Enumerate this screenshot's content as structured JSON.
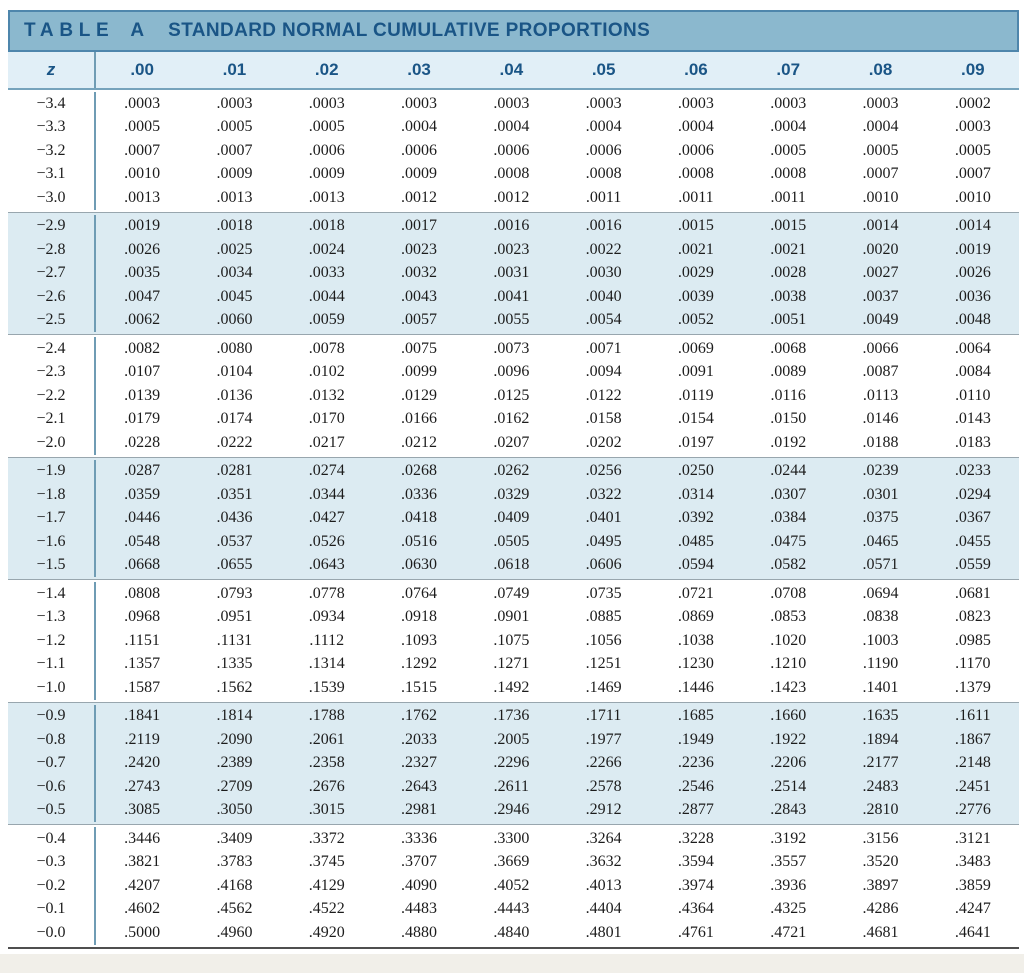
{
  "header": {
    "table_label": "TABLE",
    "table_letter": "A",
    "title": "STANDARD NORMAL CUMULATIVE PROPORTIONS"
  },
  "colors": {
    "band_bg": "#8bb8ce",
    "band_border": "#4e86ac",
    "heading_text": "#1a5586",
    "header_row_bg": "#e1eff7",
    "shaded_block_bg": "#dcebf2",
    "divider": "#6f9cb4",
    "block_separator": "#98a6ae",
    "data_text": "#1c1c1c",
    "footer_strip": "#f1efe9"
  },
  "table": {
    "columns": [
      "z",
      ".00",
      ".01",
      ".02",
      ".03",
      ".04",
      ".05",
      ".06",
      ".07",
      ".08",
      ".09"
    ],
    "blocks": [
      {
        "shaded": false,
        "rows": [
          {
            "z": "−3.4",
            "values": [
              ".0003",
              ".0003",
              ".0003",
              ".0003",
              ".0003",
              ".0003",
              ".0003",
              ".0003",
              ".0003",
              ".0002"
            ]
          },
          {
            "z": "−3.3",
            "values": [
              ".0005",
              ".0005",
              ".0005",
              ".0004",
              ".0004",
              ".0004",
              ".0004",
              ".0004",
              ".0004",
              ".0003"
            ]
          },
          {
            "z": "−3.2",
            "values": [
              ".0007",
              ".0007",
              ".0006",
              ".0006",
              ".0006",
              ".0006",
              ".0006",
              ".0005",
              ".0005",
              ".0005"
            ]
          },
          {
            "z": "−3.1",
            "values": [
              ".0010",
              ".0009",
              ".0009",
              ".0009",
              ".0008",
              ".0008",
              ".0008",
              ".0008",
              ".0007",
              ".0007"
            ]
          },
          {
            "z": "−3.0",
            "values": [
              ".0013",
              ".0013",
              ".0013",
              ".0012",
              ".0012",
              ".0011",
              ".0011",
              ".0011",
              ".0010",
              ".0010"
            ]
          }
        ]
      },
      {
        "shaded": true,
        "rows": [
          {
            "z": "−2.9",
            "values": [
              ".0019",
              ".0018",
              ".0018",
              ".0017",
              ".0016",
              ".0016",
              ".0015",
              ".0015",
              ".0014",
              ".0014"
            ]
          },
          {
            "z": "−2.8",
            "values": [
              ".0026",
              ".0025",
              ".0024",
              ".0023",
              ".0023",
              ".0022",
              ".0021",
              ".0021",
              ".0020",
              ".0019"
            ]
          },
          {
            "z": "−2.7",
            "values": [
              ".0035",
              ".0034",
              ".0033",
              ".0032",
              ".0031",
              ".0030",
              ".0029",
              ".0028",
              ".0027",
              ".0026"
            ]
          },
          {
            "z": "−2.6",
            "values": [
              ".0047",
              ".0045",
              ".0044",
              ".0043",
              ".0041",
              ".0040",
              ".0039",
              ".0038",
              ".0037",
              ".0036"
            ]
          },
          {
            "z": "−2.5",
            "values": [
              ".0062",
              ".0060",
              ".0059",
              ".0057",
              ".0055",
              ".0054",
              ".0052",
              ".0051",
              ".0049",
              ".0048"
            ]
          }
        ]
      },
      {
        "shaded": false,
        "rows": [
          {
            "z": "−2.4",
            "values": [
              ".0082",
              ".0080",
              ".0078",
              ".0075",
              ".0073",
              ".0071",
              ".0069",
              ".0068",
              ".0066",
              ".0064"
            ]
          },
          {
            "z": "−2.3",
            "values": [
              ".0107",
              ".0104",
              ".0102",
              ".0099",
              ".0096",
              ".0094",
              ".0091",
              ".0089",
              ".0087",
              ".0084"
            ]
          },
          {
            "z": "−2.2",
            "values": [
              ".0139",
              ".0136",
              ".0132",
              ".0129",
              ".0125",
              ".0122",
              ".0119",
              ".0116",
              ".0113",
              ".0110"
            ]
          },
          {
            "z": "−2.1",
            "values": [
              ".0179",
              ".0174",
              ".0170",
              ".0166",
              ".0162",
              ".0158",
              ".0154",
              ".0150",
              ".0146",
              ".0143"
            ]
          },
          {
            "z": "−2.0",
            "values": [
              ".0228",
              ".0222",
              ".0217",
              ".0212",
              ".0207",
              ".0202",
              ".0197",
              ".0192",
              ".0188",
              ".0183"
            ]
          }
        ]
      },
      {
        "shaded": true,
        "rows": [
          {
            "z": "−1.9",
            "values": [
              ".0287",
              ".0281",
              ".0274",
              ".0268",
              ".0262",
              ".0256",
              ".0250",
              ".0244",
              ".0239",
              ".0233"
            ]
          },
          {
            "z": "−1.8",
            "values": [
              ".0359",
              ".0351",
              ".0344",
              ".0336",
              ".0329",
              ".0322",
              ".0314",
              ".0307",
              ".0301",
              ".0294"
            ]
          },
          {
            "z": "−1.7",
            "values": [
              ".0446",
              ".0436",
              ".0427",
              ".0418",
              ".0409",
              ".0401",
              ".0392",
              ".0384",
              ".0375",
              ".0367"
            ]
          },
          {
            "z": "−1.6",
            "values": [
              ".0548",
              ".0537",
              ".0526",
              ".0516",
              ".0505",
              ".0495",
              ".0485",
              ".0475",
              ".0465",
              ".0455"
            ]
          },
          {
            "z": "−1.5",
            "values": [
              ".0668",
              ".0655",
              ".0643",
              ".0630",
              ".0618",
              ".0606",
              ".0594",
              ".0582",
              ".0571",
              ".0559"
            ]
          }
        ]
      },
      {
        "shaded": false,
        "rows": [
          {
            "z": "−1.4",
            "values": [
              ".0808",
              ".0793",
              ".0778",
              ".0764",
              ".0749",
              ".0735",
              ".0721",
              ".0708",
              ".0694",
              ".0681"
            ]
          },
          {
            "z": "−1.3",
            "values": [
              ".0968",
              ".0951",
              ".0934",
              ".0918",
              ".0901",
              ".0885",
              ".0869",
              ".0853",
              ".0838",
              ".0823"
            ]
          },
          {
            "z": "−1.2",
            "values": [
              ".1151",
              ".1131",
              ".1112",
              ".1093",
              ".1075",
              ".1056",
              ".1038",
              ".1020",
              ".1003",
              ".0985"
            ]
          },
          {
            "z": "−1.1",
            "values": [
              ".1357",
              ".1335",
              ".1314",
              ".1292",
              ".1271",
              ".1251",
              ".1230",
              ".1210",
              ".1190",
              ".1170"
            ]
          },
          {
            "z": "−1.0",
            "values": [
              ".1587",
              ".1562",
              ".1539",
              ".1515",
              ".1492",
              ".1469",
              ".1446",
              ".1423",
              ".1401",
              ".1379"
            ]
          }
        ]
      },
      {
        "shaded": true,
        "rows": [
          {
            "z": "−0.9",
            "values": [
              ".1841",
              ".1814",
              ".1788",
              ".1762",
              ".1736",
              ".1711",
              ".1685",
              ".1660",
              ".1635",
              ".1611"
            ]
          },
          {
            "z": "−0.8",
            "values": [
              ".2119",
              ".2090",
              ".2061",
              ".2033",
              ".2005",
              ".1977",
              ".1949",
              ".1922",
              ".1894",
              ".1867"
            ]
          },
          {
            "z": "−0.7",
            "values": [
              ".2420",
              ".2389",
              ".2358",
              ".2327",
              ".2296",
              ".2266",
              ".2236",
              ".2206",
              ".2177",
              ".2148"
            ]
          },
          {
            "z": "−0.6",
            "values": [
              ".2743",
              ".2709",
              ".2676",
              ".2643",
              ".2611",
              ".2578",
              ".2546",
              ".2514",
              ".2483",
              ".2451"
            ]
          },
          {
            "z": "−0.5",
            "values": [
              ".3085",
              ".3050",
              ".3015",
              ".2981",
              ".2946",
              ".2912",
              ".2877",
              ".2843",
              ".2810",
              ".2776"
            ]
          }
        ]
      },
      {
        "shaded": false,
        "rows": [
          {
            "z": "−0.4",
            "values": [
              ".3446",
              ".3409",
              ".3372",
              ".3336",
              ".3300",
              ".3264",
              ".3228",
              ".3192",
              ".3156",
              ".3121"
            ]
          },
          {
            "z": "−0.3",
            "values": [
              ".3821",
              ".3783",
              ".3745",
              ".3707",
              ".3669",
              ".3632",
              ".3594",
              ".3557",
              ".3520",
              ".3483"
            ]
          },
          {
            "z": "−0.2",
            "values": [
              ".4207",
              ".4168",
              ".4129",
              ".4090",
              ".4052",
              ".4013",
              ".3974",
              ".3936",
              ".3897",
              ".3859"
            ]
          },
          {
            "z": "−0.1",
            "values": [
              ".4602",
              ".4562",
              ".4522",
              ".4483",
              ".4443",
              ".4404",
              ".4364",
              ".4325",
              ".4286",
              ".4247"
            ]
          },
          {
            "z": "−0.0",
            "values": [
              ".5000",
              ".4960",
              ".4920",
              ".4880",
              ".4840",
              ".4801",
              ".4761",
              ".4721",
              ".4681",
              ".4641"
            ]
          }
        ]
      }
    ]
  }
}
